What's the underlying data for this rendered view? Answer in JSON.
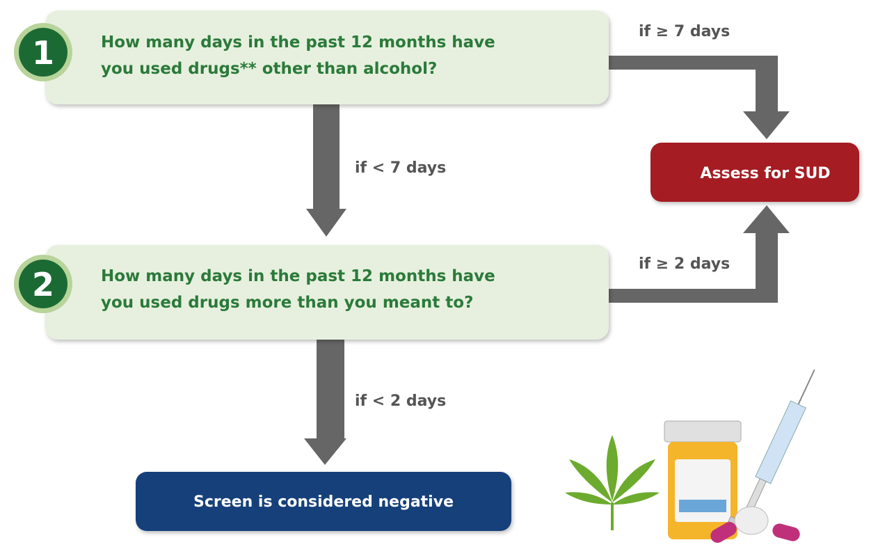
{
  "steps": [
    {
      "number": "1",
      "question_lines": [
        "How many days in the past 12 months have",
        "you used drugs** other than alcohol?"
      ]
    },
    {
      "number": "2",
      "question_lines": [
        "How many days in the past 12 months have",
        "you used drugs more than you meant to?"
      ]
    }
  ],
  "conditions": {
    "step1_yes": "if ≥ 7 days",
    "step1_no": "if < 7 days",
    "step2_yes": "if ≥ 2 days",
    "step2_no": "if < 2 days"
  },
  "outcomes": {
    "positive": "Assess for SUD",
    "negative": "Screen is considered negative"
  }
}
